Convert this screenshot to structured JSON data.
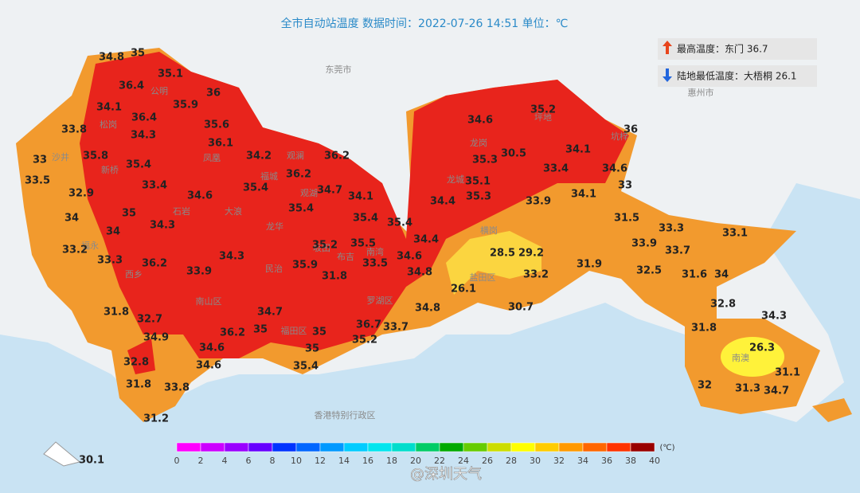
{
  "title": "全市自动站温度  数据时间：2022-07-26 14:51  单位：℃",
  "legend": {
    "max": "最高温度：东门 36.7",
    "min": "陆地最低温度：大梧桐 26.1"
  },
  "places": [
    "东莞市",
    "惠州市",
    "香港特别行政区",
    "南山区",
    "福田区",
    "罗湖区",
    "盐田区",
    "龙岗",
    "坪地",
    "坑梓",
    "石岩",
    "大浪",
    "观澜",
    "龙城",
    "南澳",
    "公明",
    "松岗",
    "凤凰",
    "福城",
    "观湖",
    "龙华",
    "民治",
    "坂田",
    "南湾",
    "布吉",
    "西乡",
    "新桥",
    "沙井",
    "福永",
    "横岗"
  ],
  "stations": [
    34.8,
    35,
    36.4,
    35.1,
    36,
    34.1,
    35.9,
    36.4,
    35.6,
    33.8,
    34.3,
    36.1,
    34.2,
    36.2,
    35.8,
    33,
    35.4,
    36.2,
    33.5,
    33.4,
    35.4,
    34.7,
    34.1,
    32.9,
    34.6,
    35.4,
    34,
    35,
    35.4,
    35.4,
    34.3,
    34,
    34.4,
    33.2,
    35.2,
    35.5,
    34.3,
    33.3,
    36.2,
    33.5,
    34.6,
    35.9,
    33.9,
    34.8,
    31.8,
    26.1,
    34.8,
    30.7,
    31.8,
    32.7,
    34.7,
    36.7,
    33.7,
    35.2,
    34.9,
    36.2,
    35,
    35,
    35,
    34.6,
    32.8,
    34.6,
    35.4,
    31.8,
    33.8,
    31.2,
    30.1,
    34.6,
    35.2,
    36,
    30.5,
    34.1,
    35.3,
    33.4,
    34.6,
    35.1,
    33,
    35.3,
    34.4,
    33.9,
    34.1,
    31.5,
    33.3,
    33.1,
    33.9,
    33.7,
    28.5,
    29.2,
    31.9,
    32.5,
    33.2,
    31.6,
    34,
    32.8,
    34.3,
    31.8,
    26.3,
    31.1,
    32,
    31.3,
    34.7
  ],
  "scale": {
    "unit": "(℃)",
    "ticks": [
      0,
      2,
      4,
      6,
      8,
      10,
      12,
      14,
      16,
      18,
      20,
      22,
      24,
      26,
      28,
      30,
      32,
      34,
      36,
      38,
      40
    ],
    "colors": [
      "#ff00ff",
      "#cc00ff",
      "#9900ff",
      "#6600ff",
      "#0033ff",
      "#0066ff",
      "#0099ff",
      "#00ccff",
      "#00e5ee",
      "#00ddcc",
      "#00cc66",
      "#00aa00",
      "#66cc00",
      "#ccdd00",
      "#ffff00",
      "#ffcc00",
      "#ff9900",
      "#ff6600",
      "#ff3300",
      "#990000"
    ]
  },
  "watermark": "@深圳天气"
}
